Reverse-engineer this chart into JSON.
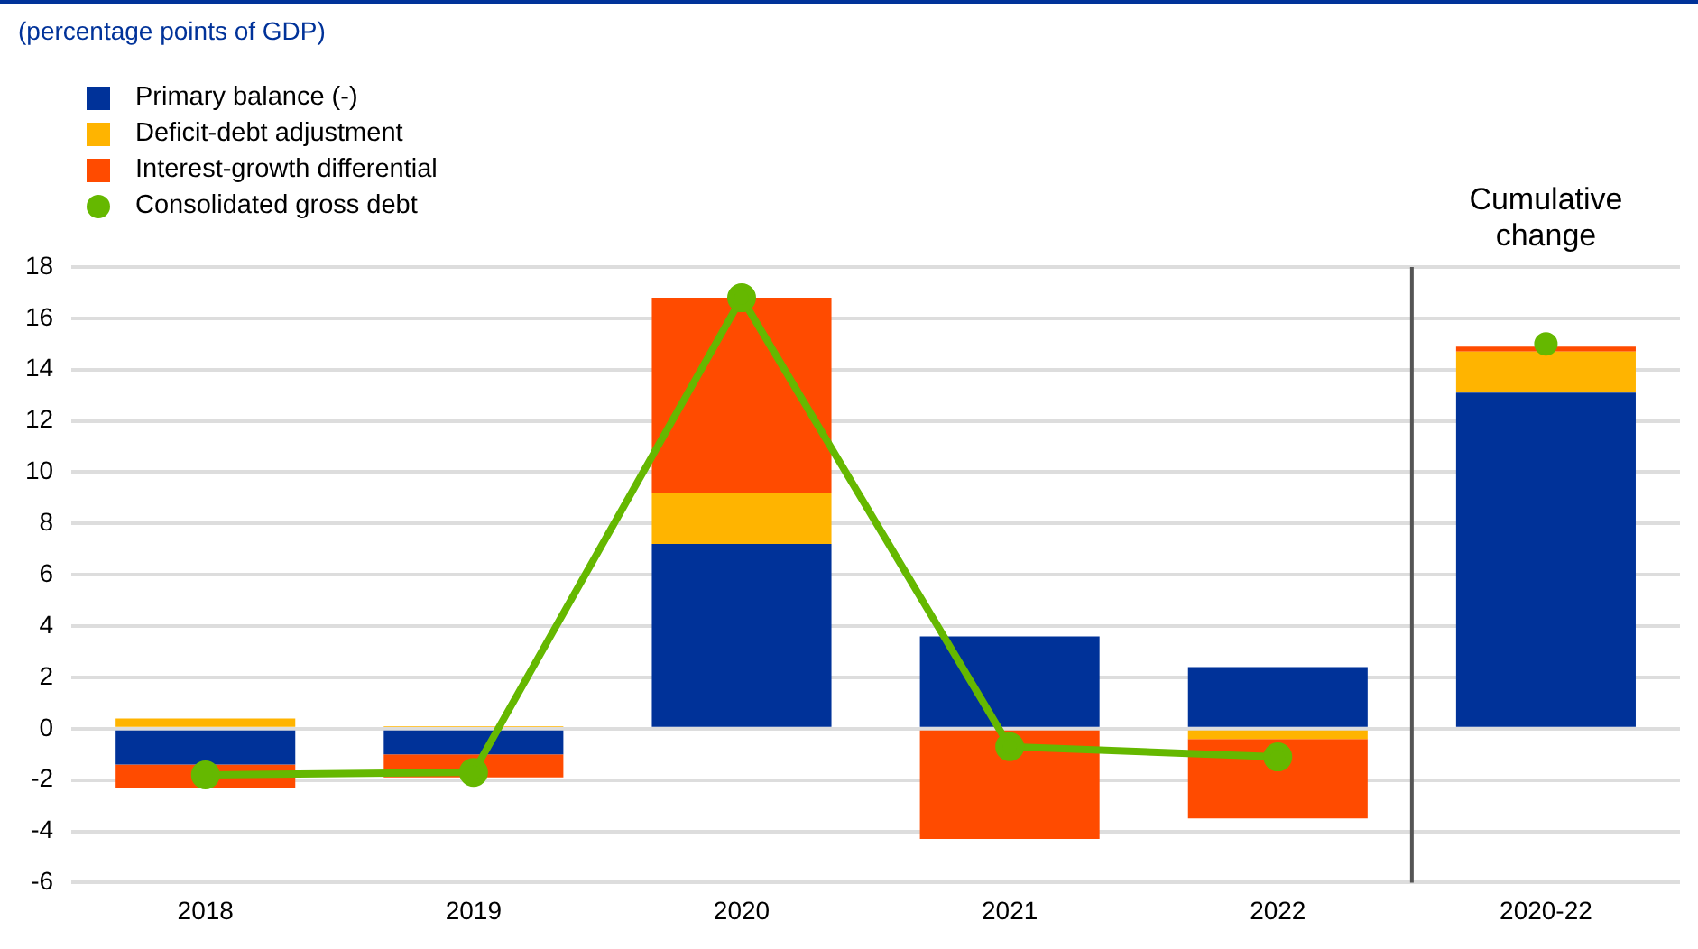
{
  "chart_data": {
    "type": "bar",
    "title": "(percentage points of GDP)",
    "stacked": true,
    "categories": [
      "2018",
      "2019",
      "2020",
      "2021",
      "2022",
      "2020-22"
    ],
    "series": [
      {
        "name": "Primary balance (-)",
        "color": "#003299",
        "values": [
          -1.4,
          -1.0,
          7.2,
          3.6,
          2.4,
          13.1
        ]
      },
      {
        "name": "Deficit-debt adjustment",
        "color": "#ffb400",
        "values": [
          0.4,
          0.1,
          2.0,
          0,
          -0.4,
          1.6
        ]
      },
      {
        "name": "Interest-growth differential",
        "color": "#ff4b00",
        "values": [
          -0.9,
          -0.9,
          7.6,
          -4.3,
          -3.1,
          0.2
        ]
      },
      {
        "name": "Consolidated gross debt",
        "type": "line",
        "color": "#65b800",
        "marker": "circle",
        "values": [
          -1.8,
          -1.7,
          16.8,
          -0.7,
          -1.1,
          null
        ]
      },
      {
        "type": "scatter",
        "color": "#65b800",
        "marker": "circle",
        "values": [
          null,
          null,
          null,
          null,
          null,
          15.0
        ]
      }
    ],
    "ref_lines": [
      {
        "axis": "x",
        "value": "2020-22",
        "color": "#555555",
        "line_style": "solid"
      }
    ],
    "ylim": [
      -6,
      18
    ],
    "yticks": [
      -6,
      -4,
      -2,
      0,
      2,
      4,
      6,
      8,
      10,
      12,
      14,
      16,
      18
    ],
    "grid": "y",
    "legend": "top left",
    "annotations": [
      "Cumulative change"
    ]
  }
}
